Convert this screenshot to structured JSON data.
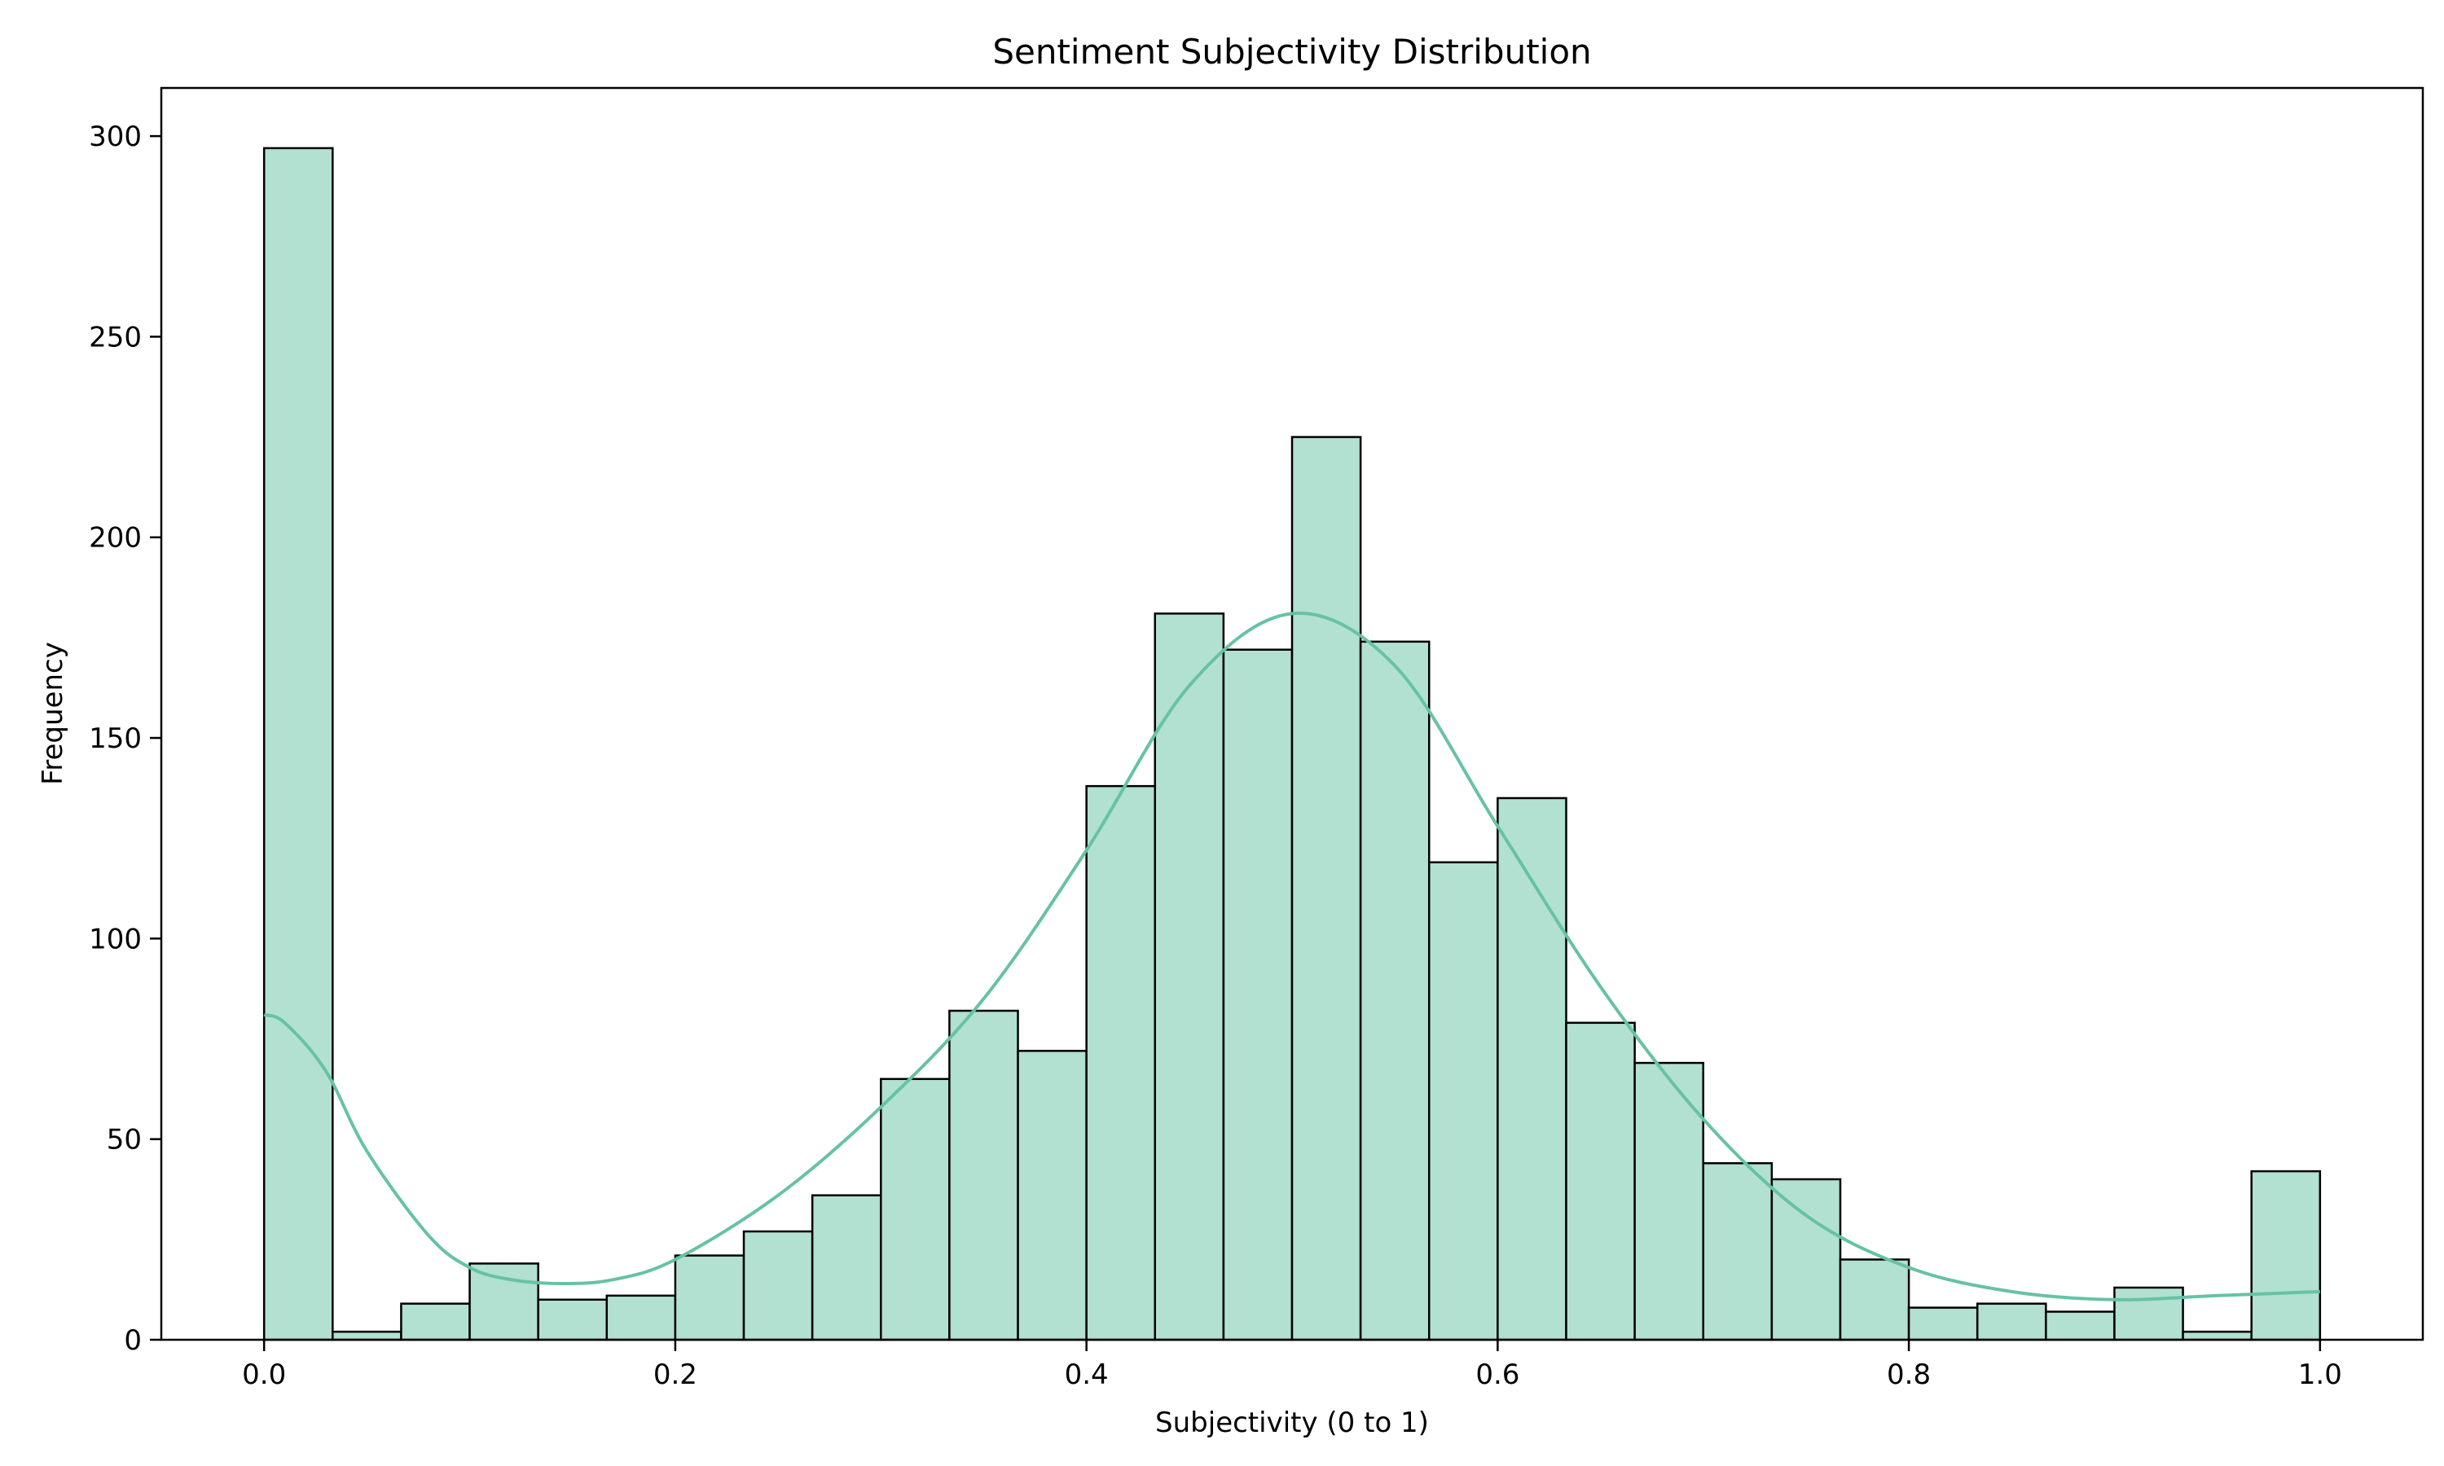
{
  "chart_data": {
    "type": "bar",
    "title": "Sentiment Subjectivity Distribution",
    "xlabel": "Subjectivity (0 to 1)",
    "ylabel": "Frequency",
    "xlim": [
      -0.05,
      1.05
    ],
    "ylim": [
      0,
      312
    ],
    "x_ticks": [
      0.0,
      0.2,
      0.4,
      0.6,
      0.8,
      1.0
    ],
    "x_tick_labels": [
      "0.0",
      "0.2",
      "0.4",
      "0.6",
      "0.8",
      "1.0"
    ],
    "y_ticks": [
      0,
      50,
      100,
      150,
      200,
      250,
      300
    ],
    "y_tick_labels": [
      "0",
      "50",
      "100",
      "150",
      "200",
      "250",
      "300"
    ],
    "grid": false,
    "bin_range": [
      0,
      1
    ],
    "bin_count": 30,
    "values": [
      297,
      2,
      9,
      19,
      10,
      11,
      21,
      27,
      36,
      65,
      82,
      72,
      138,
      181,
      172,
      225,
      174,
      119,
      135,
      79,
      69,
      44,
      40,
      20,
      8,
      9,
      7,
      13,
      2,
      42
    ],
    "kde": {
      "x": [
        0.0,
        0.01,
        0.03,
        0.05,
        0.08,
        0.1,
        0.12,
        0.145,
        0.17,
        0.2,
        0.25,
        0.3,
        0.35,
        0.4,
        0.45,
        0.5,
        0.55,
        0.6,
        0.65,
        0.7,
        0.75,
        0.8,
        0.85,
        0.9,
        0.95,
        1.0
      ],
      "y": [
        81,
        79,
        67,
        47,
        26,
        18,
        15,
        14,
        15,
        20,
        36,
        58,
        85,
        122,
        163,
        181,
        168,
        128,
        88,
        55,
        31,
        18,
        12,
        10,
        11,
        12
      ]
    },
    "colors": {
      "bar_fill": "#b2e0d1",
      "bar_edge": "#000000",
      "kde_line": "#66c2a5"
    }
  }
}
